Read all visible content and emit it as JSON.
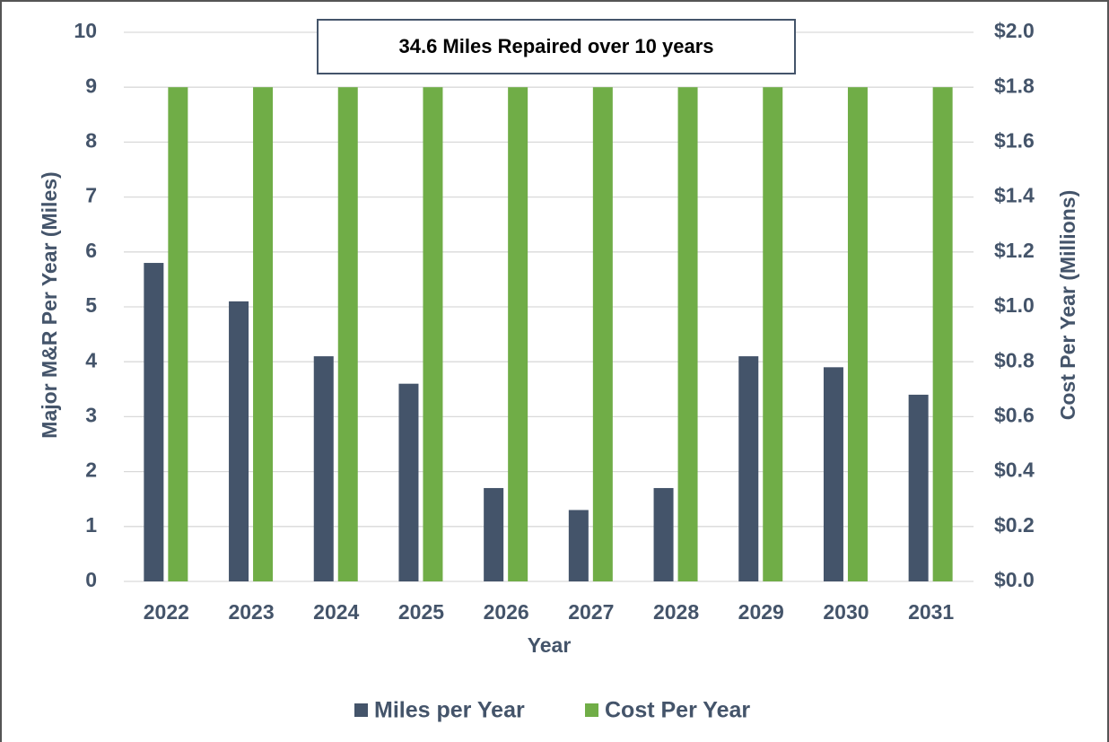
{
  "chart_data": {
    "type": "bar",
    "annotation": "34.6 Miles Repaired over 10 years",
    "x_label": "Year",
    "y_label": "Major M&R Per Year (Miles)",
    "y2_label": "Cost Per Year (Millions)",
    "categories": [
      "2022",
      "2023",
      "2024",
      "2025",
      "2026",
      "2027",
      "2028",
      "2029",
      "2030",
      "2031"
    ],
    "series": [
      {
        "name": "Miles per Year",
        "color": "#44546a",
        "values": [
          5.8,
          5.1,
          4.1,
          3.6,
          1.7,
          1.3,
          1.7,
          4.1,
          3.9,
          3.4
        ]
      },
      {
        "name": "Cost Per Year",
        "color": "#70ad47",
        "axis": "y2",
        "values": [
          1.8,
          1.8,
          1.8,
          1.8,
          1.8,
          1.8,
          1.8,
          1.8,
          1.8,
          1.8
        ]
      }
    ],
    "ylim": [
      0,
      10
    ],
    "yticks": [
      0,
      1,
      2,
      3,
      4,
      5,
      6,
      7,
      8,
      9,
      10
    ],
    "y2lim": [
      0,
      2
    ],
    "y2ticks": [
      {
        "value": 0,
        "label": "$0.0"
      },
      {
        "value": 0.2,
        "label": "$0.2"
      },
      {
        "value": 0.4,
        "label": "$0.4"
      },
      {
        "value": 0.6,
        "label": "$0.6"
      },
      {
        "value": 0.8,
        "label": "$0.8"
      },
      {
        "value": 1,
        "label": "$1.0"
      },
      {
        "value": 1.2,
        "label": "$1.2"
      },
      {
        "value": 1.4,
        "label": "$1.4"
      },
      {
        "value": 1.6,
        "label": "$1.6"
      },
      {
        "value": 1.8,
        "label": "$1.8"
      },
      {
        "value": 2,
        "label": "$2.0"
      }
    ],
    "grid": true,
    "legend": "bottom"
  }
}
